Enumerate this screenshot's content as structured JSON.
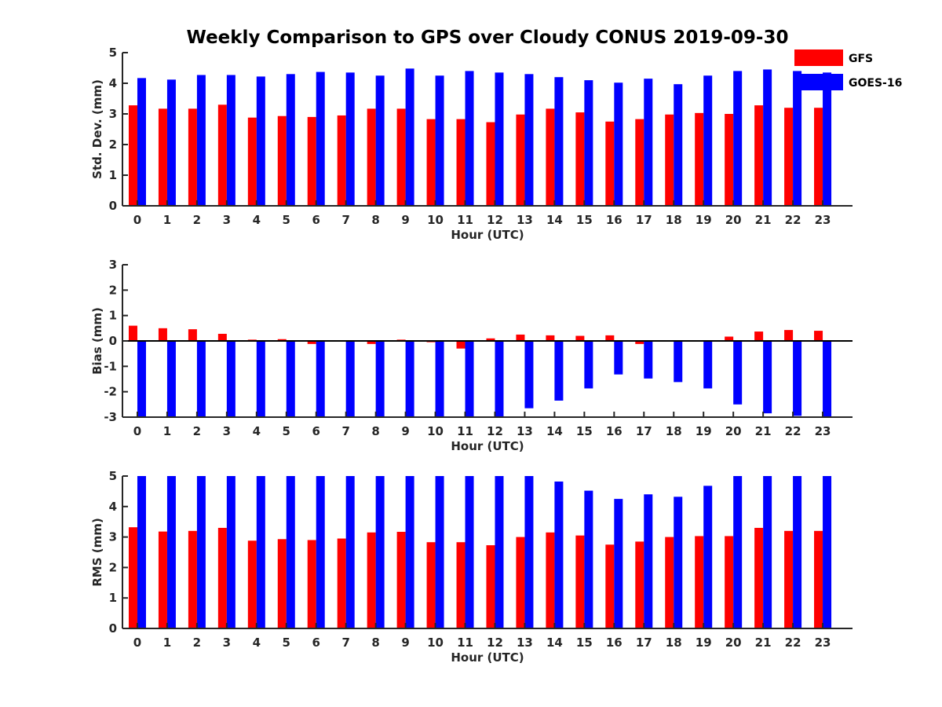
{
  "title": "Weekly Comparison to GPS over Cloudy CONUS 2019-09-30",
  "colors": {
    "GFS": "#ff0000",
    "GOES-16": "#0000ff",
    "axis": "#262626"
  },
  "chart_data": [
    {
      "type": "bar",
      "ylabel": "Std. Dev. (mm)",
      "xlabel": "Hour (UTC)",
      "ylim": [
        0,
        5
      ],
      "yticks": [
        0,
        1,
        2,
        3,
        4,
        5
      ],
      "categories": [
        "0",
        "1",
        "2",
        "3",
        "4",
        "5",
        "6",
        "7",
        "8",
        "9",
        "10",
        "11",
        "12",
        "13",
        "14",
        "15",
        "16",
        "17",
        "18",
        "19",
        "20",
        "21",
        "22",
        "23"
      ],
      "legend": {
        "placement": "top-right",
        "entries": [
          "GFS",
          "GOES-16"
        ]
      },
      "series": [
        {
          "name": "GFS",
          "values": [
            3.28,
            3.17,
            3.17,
            3.3,
            2.88,
            2.93,
            2.9,
            2.95,
            3.17,
            3.17,
            2.83,
            2.83,
            2.73,
            2.98,
            3.17,
            3.05,
            2.75,
            2.83,
            2.98,
            3.03,
            3.0,
            3.28,
            3.2,
            3.2
          ]
        },
        {
          "name": "GOES-16",
          "values": [
            4.17,
            4.12,
            4.27,
            4.27,
            4.22,
            4.3,
            4.37,
            4.35,
            4.25,
            4.48,
            4.25,
            4.4,
            4.35,
            4.3,
            4.2,
            4.1,
            4.02,
            4.15,
            3.97,
            4.25,
            4.4,
            4.45,
            4.4,
            4.35
          ]
        }
      ]
    },
    {
      "type": "bar",
      "ylabel": "Bias (mm)",
      "xlabel": "Hour (UTC)",
      "ylim": [
        -3,
        3
      ],
      "yticks": [
        -3,
        -2,
        -1,
        0,
        1,
        2,
        3
      ],
      "categories": [
        "0",
        "1",
        "2",
        "3",
        "4",
        "5",
        "6",
        "7",
        "8",
        "9",
        "10",
        "11",
        "12",
        "13",
        "14",
        "15",
        "16",
        "17",
        "18",
        "19",
        "20",
        "21",
        "22",
        "23"
      ],
      "series": [
        {
          "name": "GFS",
          "values": [
            0.6,
            0.5,
            0.46,
            0.28,
            0.05,
            0.07,
            -0.12,
            0.0,
            -0.12,
            0.05,
            -0.05,
            -0.3,
            0.1,
            0.25,
            0.22,
            0.2,
            0.22,
            -0.12,
            -0.03,
            0.03,
            0.17,
            0.37,
            0.43,
            0.4
          ]
        },
        {
          "name": "GOES-16",
          "values": [
            -3.0,
            -3.0,
            -3.0,
            -3.0,
            -3.0,
            -3.0,
            -3.0,
            -3.0,
            -3.0,
            -3.0,
            -3.0,
            -3.0,
            -3.0,
            -2.65,
            -2.35,
            -1.87,
            -1.32,
            -1.48,
            -1.62,
            -1.87,
            -2.5,
            -2.85,
            -2.95,
            -3.0
          ]
        }
      ]
    },
    {
      "type": "bar",
      "ylabel": "RMS (mm)",
      "xlabel": "Hour (UTC)",
      "ylim": [
        0,
        5
      ],
      "yticks": [
        0,
        1,
        2,
        3,
        4,
        5
      ],
      "categories": [
        "0",
        "1",
        "2",
        "3",
        "4",
        "5",
        "6",
        "7",
        "8",
        "9",
        "10",
        "11",
        "12",
        "13",
        "14",
        "15",
        "16",
        "17",
        "18",
        "19",
        "20",
        "21",
        "22",
        "23"
      ],
      "series": [
        {
          "name": "GFS",
          "values": [
            3.32,
            3.18,
            3.2,
            3.3,
            2.88,
            2.93,
            2.9,
            2.95,
            3.15,
            3.17,
            2.83,
            2.83,
            2.73,
            3.0,
            3.15,
            3.05,
            2.75,
            2.85,
            3.0,
            3.03,
            3.03,
            3.3,
            3.2,
            3.2
          ]
        },
        {
          "name": "GOES-16",
          "values": [
            5.0,
            5.0,
            5.0,
            5.0,
            5.0,
            5.0,
            5.0,
            5.0,
            5.0,
            5.0,
            5.0,
            5.0,
            5.0,
            5.0,
            4.82,
            4.52,
            4.25,
            4.4,
            4.32,
            4.68,
            5.0,
            5.0,
            5.0,
            5.0
          ]
        }
      ]
    }
  ]
}
